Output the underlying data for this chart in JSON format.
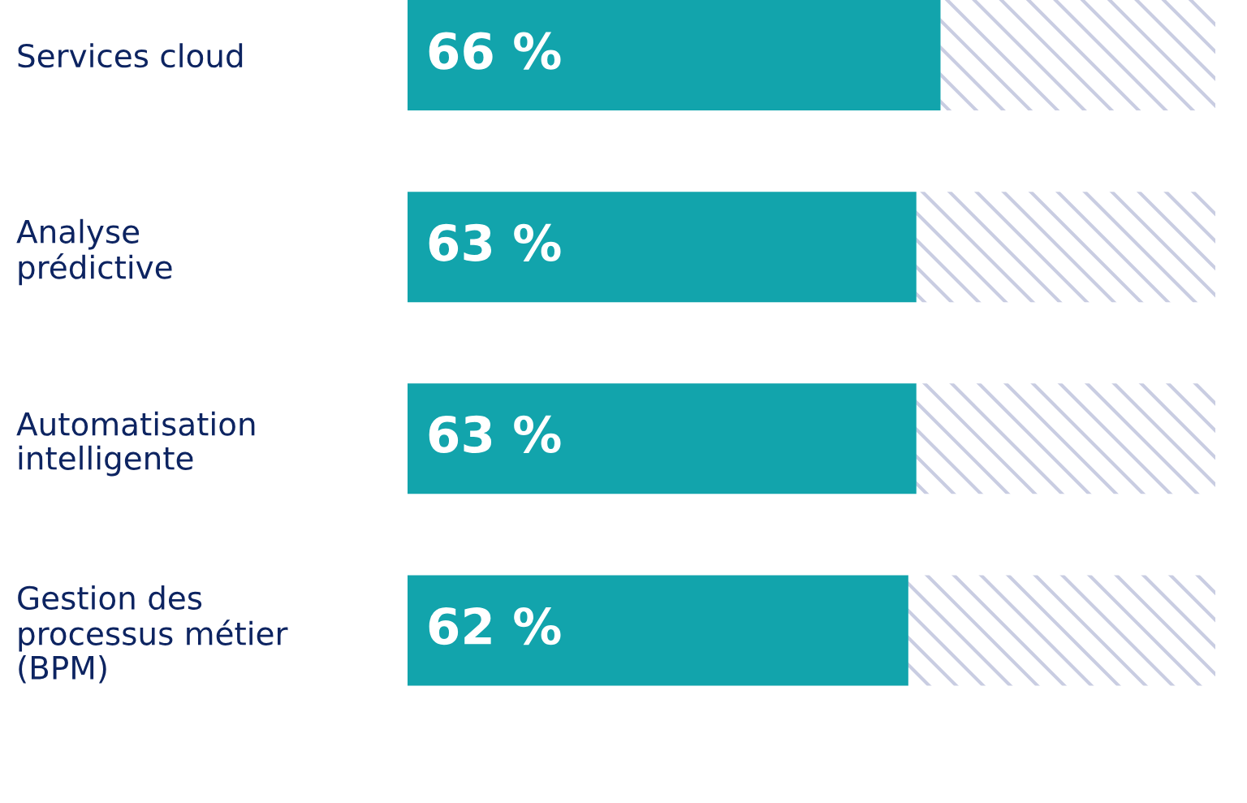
{
  "chart_data": {
    "type": "bar",
    "orientation": "horizontal",
    "stacked": true,
    "categories": [
      "Services cloud",
      "Analyse\nprédictive",
      "Automatisation\nintelligente",
      "Gestion des\nprocessus métier\n(BPM)"
    ],
    "series": [
      {
        "color": "#12a4ac",
        "values": [
          66,
          63,
          63,
          62
        ],
        "value_labels": [
          "66 %",
          "63 %",
          "63 %",
          "62 %"
        ]
      },
      {
        "color": "#c9cde2",
        "values": [
          34,
          37,
          37,
          38
        ]
      }
    ],
    "xlim": [
      0,
      100
    ],
    "tick_labels": "y",
    "grid": false,
    "legend": false
  }
}
